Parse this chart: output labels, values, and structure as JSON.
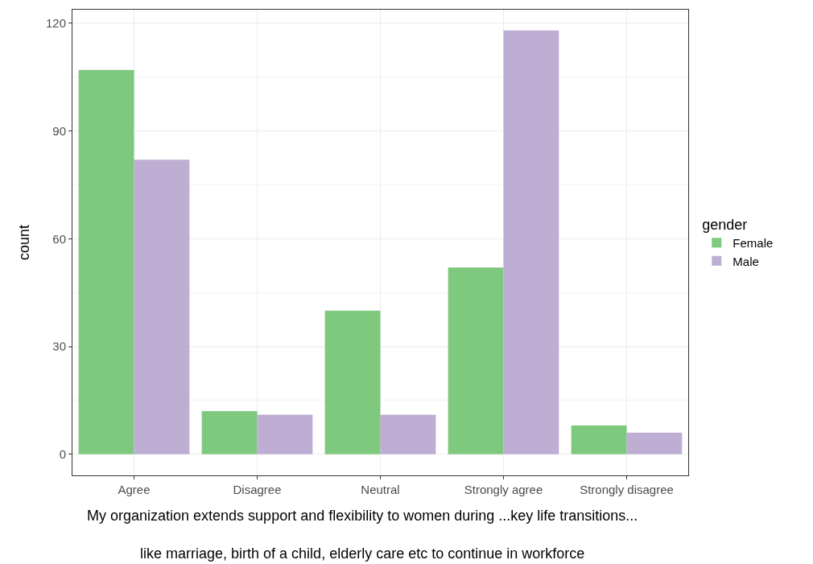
{
  "chart_data": {
    "type": "bar",
    "xlabel": "My organization extends support and flexibility to women during ...key life transitions...\n\nlike marriage, birth of a child, elderly care etc to continue in workforce",
    "ylabel": "count",
    "legend_title": "gender",
    "categories": [
      "Agree",
      "Disagree",
      "Neutral",
      "Strongly agree",
      "Strongly disagree"
    ],
    "series": [
      {
        "name": "Female",
        "color": "#7fc97f",
        "values": [
          107,
          12,
          40,
          52,
          8
        ]
      },
      {
        "name": "Male",
        "color": "#beaed4",
        "values": [
          82,
          11,
          11,
          118,
          6
        ]
      }
    ],
    "ylim": [
      -5.9,
      123.8
    ],
    "yticks": [
      0,
      30,
      60,
      90,
      120
    ],
    "grid": true,
    "legend": "right"
  }
}
